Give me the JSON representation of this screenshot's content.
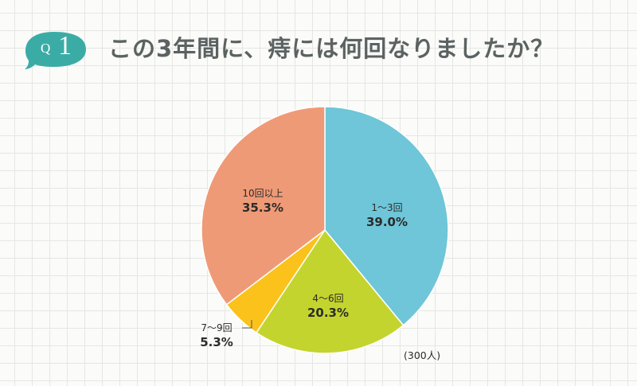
{
  "header": {
    "badge_letter": "Q",
    "badge_number": "1",
    "title": "この3年間に、痔には何回なりましたか？"
  },
  "colors": {
    "badge": "#3aaca5",
    "title_text": "#5b6362"
  },
  "note": "(300人)",
  "chart_data": {
    "type": "pie",
    "title": "この3年間に、痔には何回なりましたか？",
    "total_respondents": 300,
    "start_angle_deg": 0,
    "direction": "clockwise",
    "slices": [
      {
        "label": "1〜3回",
        "value": 39.0,
        "value_label": "39.0%",
        "color": "#6ec6d8"
      },
      {
        "label": "4〜6回",
        "value": 20.3,
        "value_label": "20.3%",
        "color": "#c4d42e"
      },
      {
        "label": "7〜9回",
        "value": 5.3,
        "value_label": "5.3%",
        "color": "#fac21b"
      },
      {
        "label": "10回以上",
        "value": 35.3,
        "value_label": "35.3%",
        "color": "#ef9a76"
      }
    ]
  }
}
